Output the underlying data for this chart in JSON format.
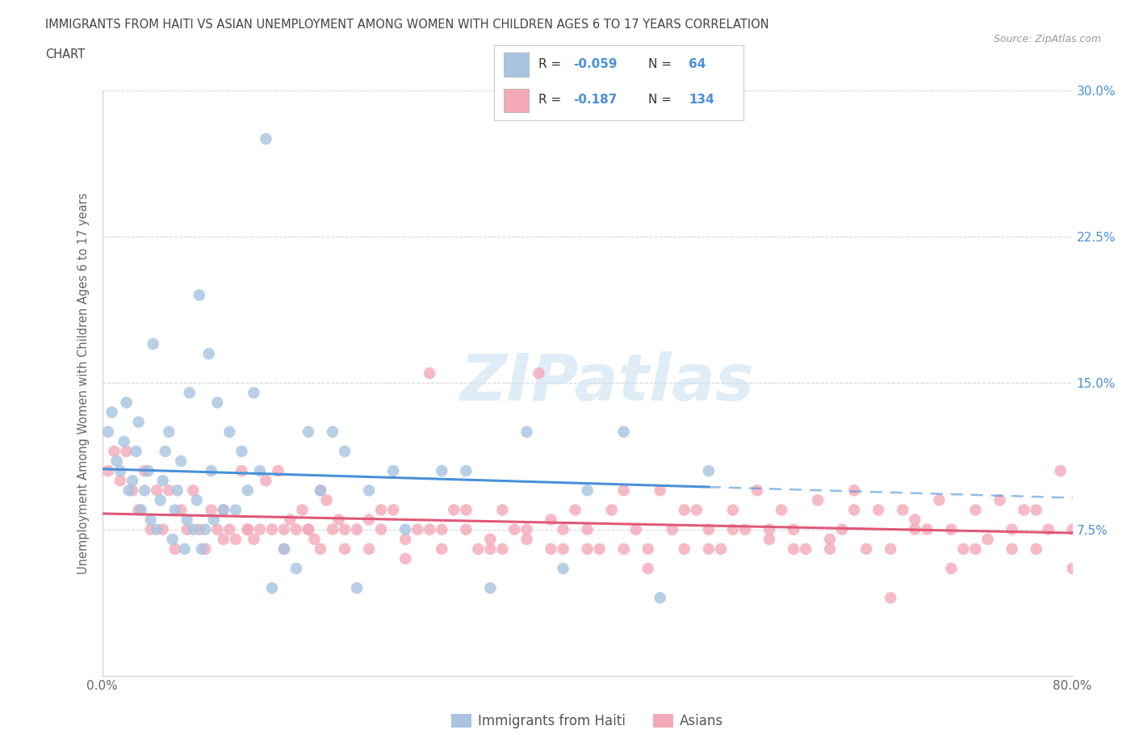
{
  "title_line1": "IMMIGRANTS FROM HAITI VS ASIAN UNEMPLOYMENT AMONG WOMEN WITH CHILDREN AGES 6 TO 17 YEARS CORRELATION",
  "title_line2": "CHART",
  "source_text": "Source: ZipAtlas.com",
  "ylabel": "Unemployment Among Women with Children Ages 6 to 17 years",
  "x_min": 0.0,
  "x_max": 0.8,
  "y_min": 0.0,
  "y_max": 0.3,
  "x_ticks": [
    0.0,
    0.1,
    0.2,
    0.3,
    0.4,
    0.5,
    0.6,
    0.7,
    0.8
  ],
  "y_ticks": [
    0.0,
    0.075,
    0.15,
    0.225,
    0.3
  ],
  "haiti_R": -0.059,
  "haiti_N": 64,
  "asian_R": -0.187,
  "asian_N": 134,
  "haiti_color": "#a8c4e0",
  "asian_color": "#f4a9b8",
  "haiti_line_color": "#4a90d9",
  "asian_line_color": "#e05878",
  "watermark": "ZIPatlas",
  "grid_color": "#e8e8e8",
  "haiti_scatter_x": [
    0.005,
    0.008,
    0.012,
    0.015,
    0.018,
    0.02,
    0.022,
    0.025,
    0.028,
    0.03,
    0.032,
    0.035,
    0.038,
    0.04,
    0.042,
    0.045,
    0.048,
    0.05,
    0.052,
    0.055,
    0.058,
    0.06,
    0.062,
    0.065,
    0.068,
    0.07,
    0.072,
    0.075,
    0.078,
    0.08,
    0.082,
    0.085,
    0.088,
    0.09,
    0.092,
    0.095,
    0.1,
    0.105,
    0.11,
    0.115,
    0.12,
    0.125,
    0.13,
    0.135,
    0.14,
    0.15,
    0.16,
    0.17,
    0.18,
    0.19,
    0.2,
    0.21,
    0.22,
    0.24,
    0.25,
    0.28,
    0.3,
    0.32,
    0.35,
    0.38,
    0.4,
    0.43,
    0.46,
    0.5
  ],
  "haiti_scatter_y": [
    0.125,
    0.135,
    0.11,
    0.105,
    0.12,
    0.14,
    0.095,
    0.1,
    0.115,
    0.13,
    0.085,
    0.095,
    0.105,
    0.08,
    0.17,
    0.075,
    0.09,
    0.1,
    0.115,
    0.125,
    0.07,
    0.085,
    0.095,
    0.11,
    0.065,
    0.08,
    0.145,
    0.075,
    0.09,
    0.195,
    0.065,
    0.075,
    0.165,
    0.105,
    0.08,
    0.14,
    0.085,
    0.125,
    0.085,
    0.115,
    0.095,
    0.145,
    0.105,
    0.275,
    0.045,
    0.065,
    0.055,
    0.125,
    0.095,
    0.125,
    0.115,
    0.045,
    0.095,
    0.105,
    0.075,
    0.105,
    0.105,
    0.045,
    0.125,
    0.055,
    0.095,
    0.125,
    0.04,
    0.105
  ],
  "asian_scatter_x": [
    0.005,
    0.01,
    0.015,
    0.02,
    0.025,
    0.03,
    0.035,
    0.04,
    0.045,
    0.05,
    0.055,
    0.06,
    0.065,
    0.07,
    0.075,
    0.08,
    0.085,
    0.09,
    0.095,
    0.1,
    0.105,
    0.11,
    0.115,
    0.12,
    0.125,
    0.13,
    0.135,
    0.14,
    0.145,
    0.15,
    0.155,
    0.16,
    0.165,
    0.17,
    0.175,
    0.18,
    0.185,
    0.19,
    0.195,
    0.2,
    0.21,
    0.22,
    0.23,
    0.24,
    0.25,
    0.26,
    0.27,
    0.28,
    0.29,
    0.3,
    0.31,
    0.32,
    0.33,
    0.34,
    0.35,
    0.36,
    0.37,
    0.38,
    0.39,
    0.4,
    0.41,
    0.42,
    0.43,
    0.44,
    0.45,
    0.46,
    0.47,
    0.48,
    0.49,
    0.5,
    0.51,
    0.52,
    0.53,
    0.54,
    0.55,
    0.56,
    0.57,
    0.58,
    0.59,
    0.6,
    0.61,
    0.62,
    0.63,
    0.64,
    0.65,
    0.66,
    0.67,
    0.68,
    0.69,
    0.7,
    0.71,
    0.72,
    0.73,
    0.74,
    0.75,
    0.76,
    0.77,
    0.78,
    0.79,
    0.8,
    0.18,
    0.22,
    0.28,
    0.33,
    0.38,
    0.43,
    0.48,
    0.52,
    0.57,
    0.62,
    0.67,
    0.72,
    0.77,
    0.1,
    0.15,
    0.2,
    0.25,
    0.3,
    0.35,
    0.4,
    0.45,
    0.5,
    0.55,
    0.6,
    0.65,
    0.7,
    0.75,
    0.8,
    0.12,
    0.17,
    0.23,
    0.27,
    0.32,
    0.37
  ],
  "asian_scatter_y": [
    0.105,
    0.115,
    0.1,
    0.115,
    0.095,
    0.085,
    0.105,
    0.075,
    0.095,
    0.075,
    0.095,
    0.065,
    0.085,
    0.075,
    0.095,
    0.075,
    0.065,
    0.085,
    0.075,
    0.07,
    0.075,
    0.07,
    0.105,
    0.075,
    0.07,
    0.075,
    0.1,
    0.075,
    0.105,
    0.075,
    0.08,
    0.075,
    0.085,
    0.075,
    0.07,
    0.065,
    0.09,
    0.075,
    0.08,
    0.065,
    0.075,
    0.065,
    0.075,
    0.085,
    0.07,
    0.075,
    0.155,
    0.065,
    0.085,
    0.075,
    0.065,
    0.07,
    0.065,
    0.075,
    0.07,
    0.155,
    0.065,
    0.075,
    0.085,
    0.075,
    0.065,
    0.085,
    0.065,
    0.075,
    0.065,
    0.095,
    0.075,
    0.065,
    0.085,
    0.075,
    0.065,
    0.085,
    0.075,
    0.095,
    0.07,
    0.085,
    0.075,
    0.065,
    0.09,
    0.07,
    0.075,
    0.095,
    0.065,
    0.085,
    0.065,
    0.085,
    0.08,
    0.075,
    0.09,
    0.075,
    0.065,
    0.085,
    0.07,
    0.09,
    0.075,
    0.085,
    0.065,
    0.075,
    0.105,
    0.075,
    0.095,
    0.08,
    0.075,
    0.085,
    0.065,
    0.095,
    0.085,
    0.075,
    0.065,
    0.085,
    0.075,
    0.065,
    0.085,
    0.085,
    0.065,
    0.075,
    0.06,
    0.085,
    0.075,
    0.065,
    0.055,
    0.065,
    0.075,
    0.065,
    0.04,
    0.055,
    0.065,
    0.055,
    0.075,
    0.075,
    0.085,
    0.075,
    0.065,
    0.08
  ]
}
